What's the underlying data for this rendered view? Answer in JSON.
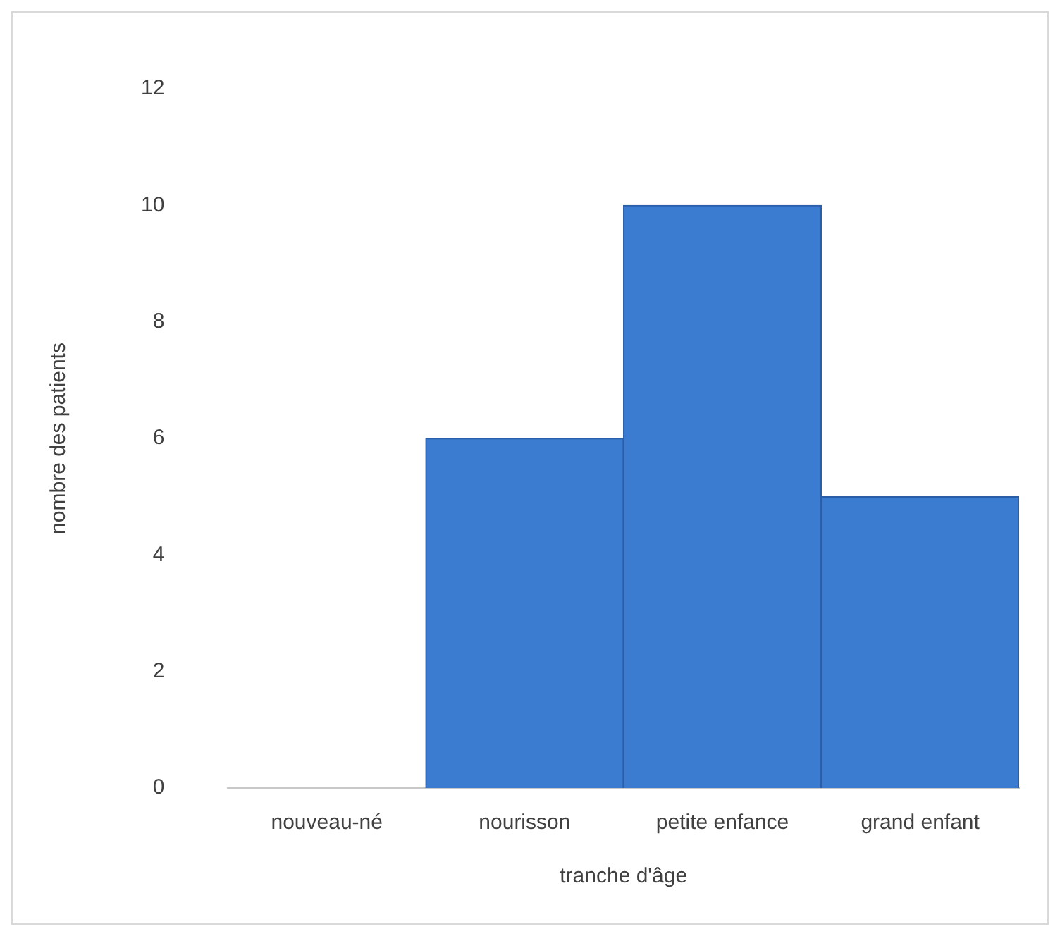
{
  "chart_data": {
    "type": "bar",
    "xlabel": "tranche d'âge",
    "ylabel": "nombre des patients",
    "categories": [
      "nouveau-né",
      "nourisson",
      "petite enfance",
      "grand enfant"
    ],
    "values": [
      0,
      6,
      10,
      5
    ],
    "color": "#3b7bd0",
    "ylim": [
      0,
      12
    ],
    "yticks": [
      0,
      2,
      4,
      6,
      8,
      10,
      12
    ],
    "grid": false,
    "legend": false
  }
}
